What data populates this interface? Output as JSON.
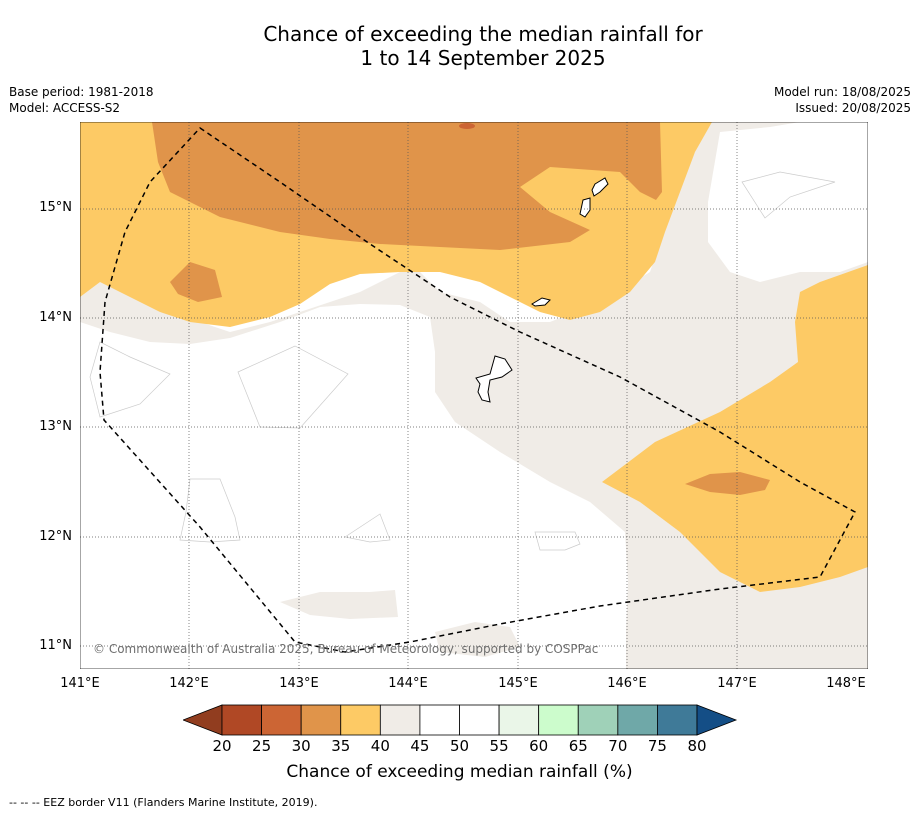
{
  "title": {
    "line1": "Chance of exceeding the median rainfall for",
    "line2": "1 to 14 September 2025"
  },
  "meta": {
    "base_period": "Base period: 1981-2018",
    "model": "Model: ACCESS-S2",
    "model_run": "Model run: 18/08/2025",
    "issued": "Issued: 20/08/2025"
  },
  "map": {
    "lat_labels": [
      "15°N",
      "14°N",
      "13°N",
      "12°N",
      "11°N"
    ],
    "lon_labels": [
      "141°E",
      "142°E",
      "143°E",
      "144°E",
      "145°E",
      "146°E",
      "147°E",
      "148°E"
    ],
    "copyright": "© Commonwealth of Australia 2025, Bureau of Meteorology, supported by COSPPac",
    "region_colors": {
      "c30_35": "#e0944a",
      "c35_40": "#fdca65",
      "c40_45": "#f0ece7",
      "c45_55": "#ffffff",
      "c25_30": "#cc6534",
      "eez_border": "#000000"
    }
  },
  "colorbar": {
    "ticks": [
      "20",
      "25",
      "30",
      "35",
      "40",
      "45",
      "50",
      "55",
      "60",
      "65",
      "70",
      "75",
      "80"
    ],
    "low_extend_color": "#913d1f",
    "high_extend_color": "#144e86",
    "colors": [
      "#b04825",
      "#cc6534",
      "#e0944a",
      "#fdca65",
      "#f0ece7",
      "#ffffff",
      "#ffffff",
      "#eaf6e8",
      "#ccfccc",
      "#9fd1b8",
      "#6fa8a8",
      "#3f7a98"
    ],
    "label": "Chance of exceeding median rainfall (%)"
  },
  "footnote": "-- -- -- EEZ border V11 (Flanders Marine Institute, 2019)."
}
